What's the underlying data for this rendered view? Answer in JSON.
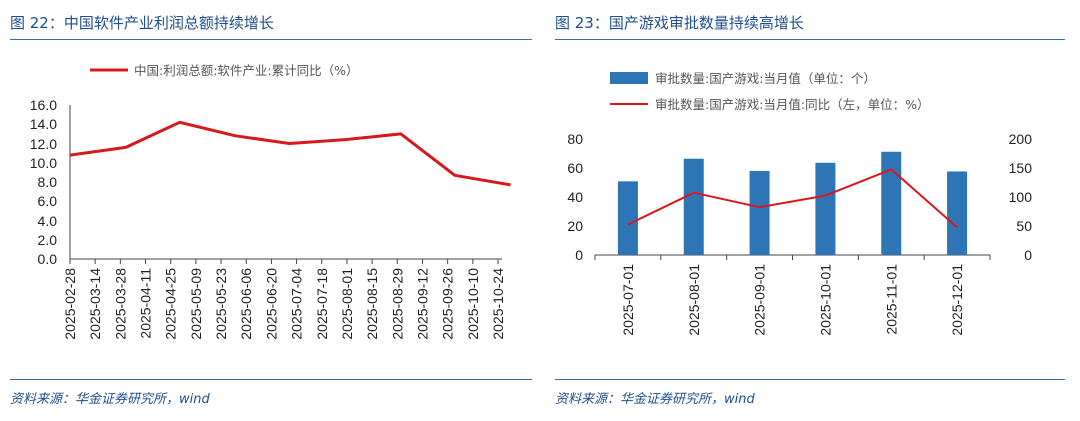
{
  "left_panel": {
    "figure_title": "图 22：中国软件产业利润总额持续增长",
    "source": "资料来源：华金证券研究所，wind"
  },
  "right_panel": {
    "figure_title": "图 23：国产游戏审批数量持续高增长",
    "source": "资料来源：华金证券研究所，wind"
  },
  "colors": {
    "line_red": "#d7191c",
    "bar_blue": "#2e75b6",
    "rule_blue": "#2f6eb5",
    "title_blue": "#1f4e8c"
  },
  "chart_data": [
    {
      "type": "line",
      "legend": "中国:利润总额:软件产业:累计同比（%）",
      "legend_position": "top",
      "categories": [
        "2025-02-28",
        "2025-03-14",
        "2025-03-28",
        "2025-04-11",
        "2025-04-25",
        "2025-05-09",
        "2025-05-23",
        "2025-06-06",
        "2025-06-20",
        "2025-07-04",
        "2025-07-18",
        "2025-08-01",
        "2025-08-15",
        "2025-08-29",
        "2025-09-12",
        "2025-09-26",
        "2025-10-10",
        "2025-10-24"
      ],
      "x": [
        "2025-02-28",
        "2025-03-31",
        "2025-04-30",
        "2025-05-31",
        "2025-06-30",
        "2025-07-31",
        "2025-08-31",
        "2025-09-30",
        "2025-10-31"
      ],
      "values": [
        10.8,
        11.6,
        14.2,
        12.8,
        12.0,
        12.4,
        13.0,
        8.7,
        7.7
      ],
      "yticks": [
        "16.0",
        "14.0",
        "12.0",
        "10.0",
        "8.0",
        "6.0",
        "4.0",
        "2.0",
        "0.0"
      ],
      "ylim": [
        0,
        16
      ]
    },
    {
      "type": "bar+line",
      "categories": [
        "2025-07-01",
        "2025-08-01",
        "2025-09-01",
        "2025-10-01",
        "2025-11-01",
        "2025-12-01"
      ],
      "series": [
        {
          "name": "审批数量:国产游戏:当月值（单位：个）",
          "kind": "bar",
          "axis": "right",
          "values": [
            127,
            166,
            145,
            159,
            178,
            144
          ]
        },
        {
          "name": "审批数量:国产游戏:当月值:同比（左，单位：%）",
          "kind": "line",
          "axis": "left",
          "values": [
            21,
            43,
            33,
            41,
            59,
            19
          ]
        }
      ],
      "left_yticks": [
        "80",
        "60",
        "40",
        "20",
        "0"
      ],
      "right_yticks": [
        "200",
        "150",
        "100",
        "50",
        "0"
      ],
      "ylim_left": [
        0,
        80
      ],
      "ylim_right": [
        0,
        200
      ]
    }
  ]
}
